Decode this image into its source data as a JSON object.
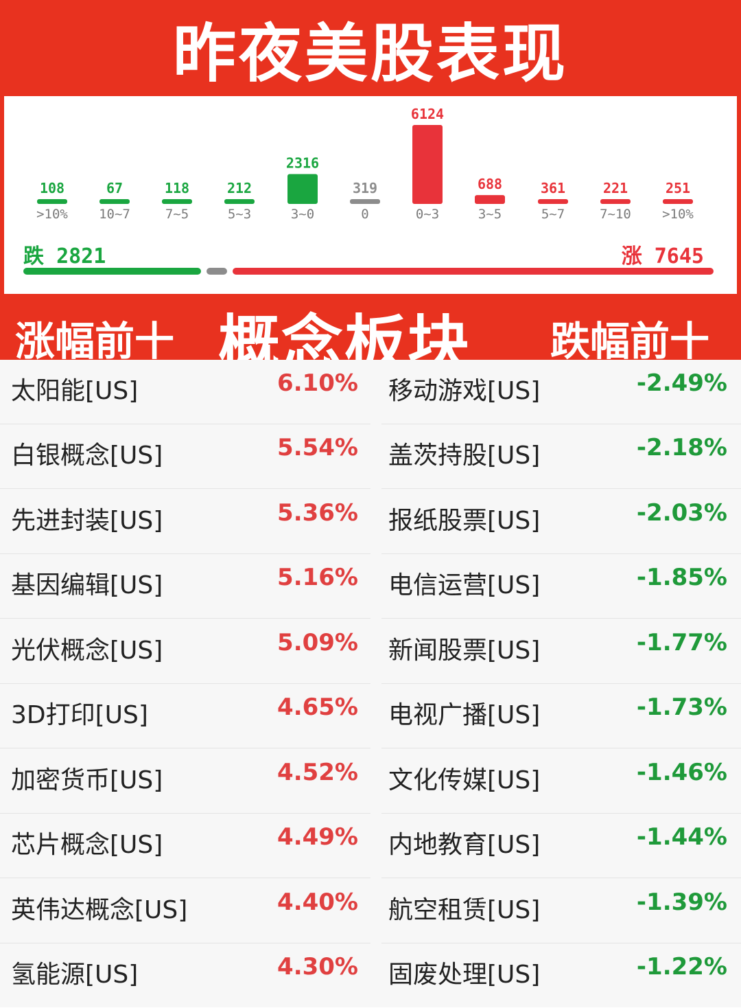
{
  "title": "昨夜美股表现",
  "chart_data": {
    "type": "bar",
    "categories": [
      ">10%",
      "10~7",
      "7~5",
      "5~3",
      "3~0",
      "0",
      "0~3",
      "3~5",
      "5~7",
      "7~10",
      ">10%"
    ],
    "values": [
      108,
      67,
      118,
      212,
      2316,
      319,
      6124,
      688,
      361,
      221,
      251
    ],
    "directions": [
      "down",
      "down",
      "down",
      "down",
      "down",
      "flat",
      "up",
      "up",
      "up",
      "up",
      "up"
    ],
    "colors": {
      "down": "#1aa640",
      "flat": "#8c8c8c",
      "up": "#e8333a"
    },
    "ylim": [
      0,
      6124
    ]
  },
  "summary": {
    "fall_label": "跌",
    "fall_count": "2821",
    "rise_label": "涨",
    "rise_count": "7645"
  },
  "banner": {
    "left": "涨幅前十",
    "center": "概念板块",
    "right": "跌幅前十"
  },
  "gainers": [
    {
      "name": "太阳能[US]",
      "pct": "6.10%"
    },
    {
      "name": "白银概念[US]",
      "pct": "5.54%"
    },
    {
      "name": "先进封装[US]",
      "pct": "5.36%"
    },
    {
      "name": "基因编辑[US]",
      "pct": "5.16%"
    },
    {
      "name": "光伏概念[US]",
      "pct": "5.09%"
    },
    {
      "name": "3D打印[US]",
      "pct": "4.65%"
    },
    {
      "name": "加密货币[US]",
      "pct": "4.52%"
    },
    {
      "name": "芯片概念[US]",
      "pct": "4.49%"
    },
    {
      "name": "英伟达概念[US]",
      "pct": "4.40%"
    },
    {
      "name": "氢能源[US]",
      "pct": "4.30%"
    }
  ],
  "losers": [
    {
      "name": "移动游戏[US]",
      "pct": "-2.49%"
    },
    {
      "name": "盖茨持股[US]",
      "pct": "-2.18%"
    },
    {
      "name": "报纸股票[US]",
      "pct": "-2.03%"
    },
    {
      "name": "电信运营[US]",
      "pct": "-1.85%"
    },
    {
      "name": "新闻股票[US]",
      "pct": "-1.77%"
    },
    {
      "name": "电视广播[US]",
      "pct": "-1.73%"
    },
    {
      "name": "文化传媒[US]",
      "pct": "-1.46%"
    },
    {
      "name": "内地教育[US]",
      "pct": "-1.44%"
    },
    {
      "name": "航空租赁[US]",
      "pct": "-1.39%"
    },
    {
      "name": "固废处理[US]",
      "pct": "-1.22%"
    }
  ]
}
